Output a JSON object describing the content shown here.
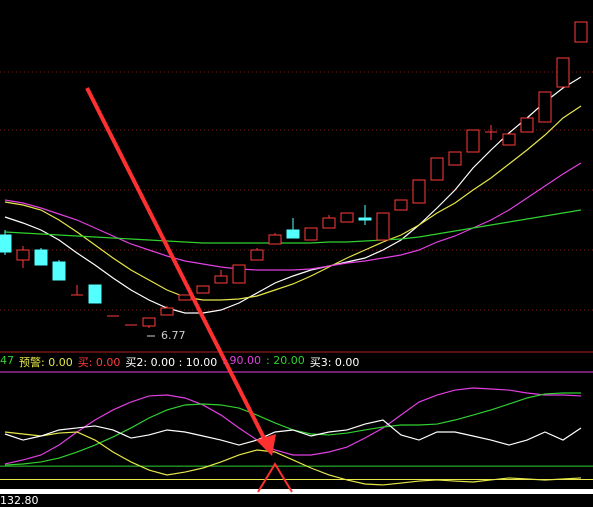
{
  "chart_data": [
    {
      "type": "candlestick",
      "up_color": "#ff3b3b",
      "down_color": "#54ffff",
      "ylim": [
        6.5,
        10.05
      ],
      "open": [
        7.7,
        7.45,
        7.55,
        7.43,
        7.1,
        7.2,
        6.89,
        6.8,
        6.79,
        6.9,
        7.05,
        7.12,
        7.22,
        7.22,
        7.45,
        7.61,
        7.75,
        7.65,
        7.77,
        7.83,
        7.87,
        7.65,
        7.95,
        8.02,
        8.25,
        8.4,
        8.53,
        8.73,
        8.6,
        8.73,
        8.83,
        9.18,
        9.63
      ],
      "high": [
        7.75,
        7.59,
        7.57,
        7.45,
        7.2,
        7.2,
        6.89,
        6.8,
        6.87,
        6.99,
        7.1,
        7.19,
        7.35,
        7.4,
        7.57,
        7.72,
        7.87,
        7.77,
        7.9,
        7.92,
        8.0,
        7.92,
        8.05,
        8.25,
        8.47,
        8.53,
        8.75,
        8.8,
        8.71,
        8.87,
        9.13,
        9.47,
        9.83
      ],
      "low": [
        7.5,
        7.37,
        7.4,
        7.25,
        7.1,
        7.02,
        6.89,
        6.8,
        6.77,
        6.9,
        7.05,
        7.12,
        7.22,
        7.22,
        7.45,
        7.61,
        7.67,
        7.65,
        7.77,
        7.83,
        7.8,
        7.65,
        7.95,
        8.02,
        8.25,
        8.4,
        8.53,
        8.65,
        8.6,
        8.73,
        8.83,
        9.18,
        9.63
      ],
      "close": [
        7.53,
        7.55,
        7.4,
        7.25,
        7.1,
        7.02,
        6.89,
        6.8,
        6.87,
        6.97,
        7.1,
        7.19,
        7.29,
        7.4,
        7.55,
        7.7,
        7.67,
        7.77,
        7.87,
        7.92,
        7.85,
        7.92,
        8.05,
        8.25,
        8.47,
        8.53,
        8.75,
        8.73,
        8.71,
        8.87,
        9.13,
        9.47,
        9.83
      ],
      "series": [
        {
          "color": "#ffffff",
          "values": [
            7.88,
            7.82,
            7.75,
            7.65,
            7.52,
            7.4,
            7.27,
            7.15,
            7.05,
            6.97,
            6.92,
            6.92,
            6.95,
            7.02,
            7.12,
            7.22,
            7.29,
            7.35,
            7.39,
            7.43,
            7.47,
            7.55,
            7.65,
            7.8,
            7.97,
            8.15,
            8.37,
            8.55,
            8.72,
            8.87,
            9.03,
            9.17,
            9.28
          ]
        },
        {
          "color": "#e6e64a",
          "values": [
            8.03,
            8.0,
            7.95,
            7.85,
            7.73,
            7.6,
            7.47,
            7.35,
            7.25,
            7.15,
            7.08,
            7.05,
            7.05,
            7.06,
            7.09,
            7.15,
            7.21,
            7.29,
            7.38,
            7.47,
            7.55,
            7.63,
            7.7,
            7.8,
            7.92,
            8.02,
            8.15,
            8.27,
            8.41,
            8.55,
            8.7,
            8.87,
            8.99
          ]
        },
        {
          "color": "#e040e0",
          "values": [
            8.05,
            8.02,
            7.97,
            7.91,
            7.85,
            7.77,
            7.69,
            7.61,
            7.55,
            7.49,
            7.44,
            7.41,
            7.38,
            7.36,
            7.35,
            7.35,
            7.35,
            7.36,
            7.39,
            7.42,
            7.44,
            7.47,
            7.5,
            7.55,
            7.63,
            7.69,
            7.77,
            7.85,
            7.95,
            8.07,
            8.19,
            8.31,
            8.42
          ]
        },
        {
          "color": "#30d030",
          "values": [
            7.73,
            7.72,
            7.71,
            7.7,
            7.69,
            7.68,
            7.67,
            7.66,
            7.65,
            7.64,
            7.63,
            7.62,
            7.62,
            7.62,
            7.62,
            7.62,
            7.62,
            7.62,
            7.63,
            7.63,
            7.64,
            7.65,
            7.66,
            7.68,
            7.71,
            7.74,
            7.77,
            7.8,
            7.83,
            7.86,
            7.89,
            7.92,
            7.95
          ]
        }
      ],
      "annotation": {
        "text": "6.77",
        "index": 8
      }
    },
    {
      "type": "line",
      "ylim": [
        0,
        100
      ],
      "legend": [
        {
          "text": "47",
          "color": "#30d030"
        },
        {
          "text": "预警: 0.00",
          "color": "#e6e64a"
        },
        {
          "text": "买: 0.00",
          "color": "#ff3b3b"
        },
        {
          "text": "买2: 0.00 : 10.00",
          "color": "#ffffff"
        },
        {
          "text": ": 90.00",
          "color": "#e040e0"
        },
        {
          "text": ": 20.00",
          "color": "#30d030"
        },
        {
          "text": "买3: 0.00",
          "color": "#ffffff"
        }
      ],
      "levels": [
        {
          "value": 90,
          "color": "#e040e0"
        },
        {
          "value": 20,
          "color": "#30d030"
        },
        {
          "value": 10,
          "color": "#e6e64a"
        }
      ],
      "series": [
        {
          "color": "#e040e0",
          "values": [
            21.6,
            24.6,
            28.3,
            35.7,
            45.4,
            54.3,
            61.8,
            67.7,
            72.2,
            72.9,
            70.7,
            65.5,
            58.0,
            48.4,
            39.4,
            32.0,
            28.3,
            28.3,
            30.5,
            34.2,
            40.9,
            48.4,
            58.0,
            67.7,
            72.9,
            76.6,
            78.1,
            77.4,
            76.6,
            74.4,
            72.9,
            72.9,
            72.2
          ]
        },
        {
          "color": "#30d030",
          "values": [
            20.8,
            21.6,
            23.1,
            26.0,
            30.5,
            35.7,
            41.7,
            48.4,
            55.8,
            61.8,
            65.5,
            66.2,
            65.5,
            63.2,
            58.0,
            52.1,
            46.9,
            43.9,
            43.2,
            44.6,
            46.9,
            49.1,
            50.6,
            50.6,
            51.3,
            54.3,
            58.0,
            61.8,
            66.2,
            70.7,
            73.7,
            74.4,
            74.4
          ]
        },
        {
          "color": "#e6e64a",
          "values": [
            45.4,
            43.9,
            42.4,
            44.6,
            45.4,
            39.4,
            30.5,
            23.1,
            17.1,
            13.4,
            15.6,
            18.6,
            23.1,
            28.3,
            32.0,
            30.5,
            24.6,
            18.6,
            13.4,
            9.7,
            6.7,
            6.0,
            7.4,
            8.9,
            9.7,
            8.9,
            8.2,
            9.7,
            11.2,
            10.4,
            9.7,
            10.4,
            11.2
          ]
        },
        {
          "color": "#ffffff",
          "values": [
            43.9,
            39.4,
            42.4,
            46.9,
            48.4,
            49.9,
            46.9,
            40.9,
            43.2,
            46.9,
            45.4,
            42.4,
            39.4,
            35.7,
            39.4,
            45.4,
            46.9,
            42.4,
            45.4,
            46.9,
            51.3,
            54.3,
            43.2,
            39.4,
            45.4,
            45.4,
            42.4,
            39.4,
            35.7,
            39.4,
            45.4,
            39.4,
            48.4
          ]
        }
      ],
      "readout": "132.80"
    }
  ]
}
